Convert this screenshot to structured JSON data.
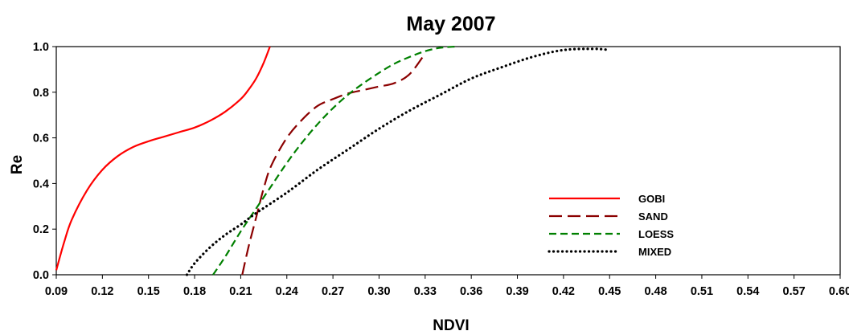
{
  "chart_data": {
    "type": "line",
    "title": "May 2007",
    "xlabel": "NDVI",
    "ylabel": "Re",
    "xlim": [
      0.09,
      0.6
    ],
    "ylim": [
      0.0,
      1.0
    ],
    "x_ticks": [
      "0.09",
      "0.12",
      "0.15",
      "0.18",
      "0.21",
      "0.24",
      "0.27",
      "0.30",
      "0.33",
      "0.36",
      "0.39",
      "0.42",
      "0.45",
      "0.48",
      "0.51",
      "0.54",
      "0.57",
      "0.60"
    ],
    "y_ticks": [
      "0.0",
      "0.2",
      "0.4",
      "0.6",
      "0.8",
      "1.0"
    ],
    "grid": false,
    "legend_position": "bottom-right",
    "series": [
      {
        "name": "GOBI",
        "color": "#ff0000",
        "dash": "solid",
        "points": [
          [
            0.09,
            0.02
          ],
          [
            0.095,
            0.14
          ],
          [
            0.1,
            0.24
          ],
          [
            0.11,
            0.37
          ],
          [
            0.12,
            0.46
          ],
          [
            0.13,
            0.52
          ],
          [
            0.14,
            0.56
          ],
          [
            0.15,
            0.585
          ],
          [
            0.16,
            0.605
          ],
          [
            0.17,
            0.625
          ],
          [
            0.18,
            0.645
          ],
          [
            0.19,
            0.675
          ],
          [
            0.2,
            0.715
          ],
          [
            0.21,
            0.77
          ],
          [
            0.215,
            0.81
          ],
          [
            0.22,
            0.86
          ],
          [
            0.225,
            0.93
          ],
          [
            0.229,
            1.0
          ]
        ]
      },
      {
        "name": "SAND",
        "color": "#8b0000",
        "dash": "long-dash",
        "points": [
          [
            0.211,
            0.0
          ],
          [
            0.215,
            0.12
          ],
          [
            0.22,
            0.25
          ],
          [
            0.225,
            0.38
          ],
          [
            0.23,
            0.48
          ],
          [
            0.24,
            0.6
          ],
          [
            0.25,
            0.68
          ],
          [
            0.26,
            0.74
          ],
          [
            0.27,
            0.77
          ],
          [
            0.28,
            0.795
          ],
          [
            0.29,
            0.81
          ],
          [
            0.3,
            0.825
          ],
          [
            0.31,
            0.84
          ],
          [
            0.32,
            0.88
          ],
          [
            0.33,
            0.97
          ]
        ]
      },
      {
        "name": "LOESS",
        "color": "#008000",
        "dash": "dash",
        "points": [
          [
            0.192,
            0.0
          ],
          [
            0.2,
            0.08
          ],
          [
            0.21,
            0.19
          ],
          [
            0.22,
            0.29
          ],
          [
            0.23,
            0.39
          ],
          [
            0.24,
            0.49
          ],
          [
            0.25,
            0.58
          ],
          [
            0.26,
            0.66
          ],
          [
            0.27,
            0.73
          ],
          [
            0.28,
            0.79
          ],
          [
            0.29,
            0.84
          ],
          [
            0.3,
            0.885
          ],
          [
            0.31,
            0.925
          ],
          [
            0.32,
            0.955
          ],
          [
            0.33,
            0.98
          ],
          [
            0.34,
            0.995
          ],
          [
            0.35,
            1.0
          ]
        ]
      },
      {
        "name": "MIXED",
        "color": "#000000",
        "dash": "dot",
        "points": [
          [
            0.175,
            0.0
          ],
          [
            0.18,
            0.05
          ],
          [
            0.19,
            0.12
          ],
          [
            0.2,
            0.175
          ],
          [
            0.21,
            0.22
          ],
          [
            0.22,
            0.27
          ],
          [
            0.24,
            0.36
          ],
          [
            0.26,
            0.46
          ],
          [
            0.28,
            0.55
          ],
          [
            0.3,
            0.64
          ],
          [
            0.32,
            0.72
          ],
          [
            0.34,
            0.79
          ],
          [
            0.36,
            0.86
          ],
          [
            0.38,
            0.91
          ],
          [
            0.4,
            0.955
          ],
          [
            0.42,
            0.985
          ],
          [
            0.44,
            0.99
          ],
          [
            0.45,
            0.985
          ]
        ]
      }
    ]
  }
}
